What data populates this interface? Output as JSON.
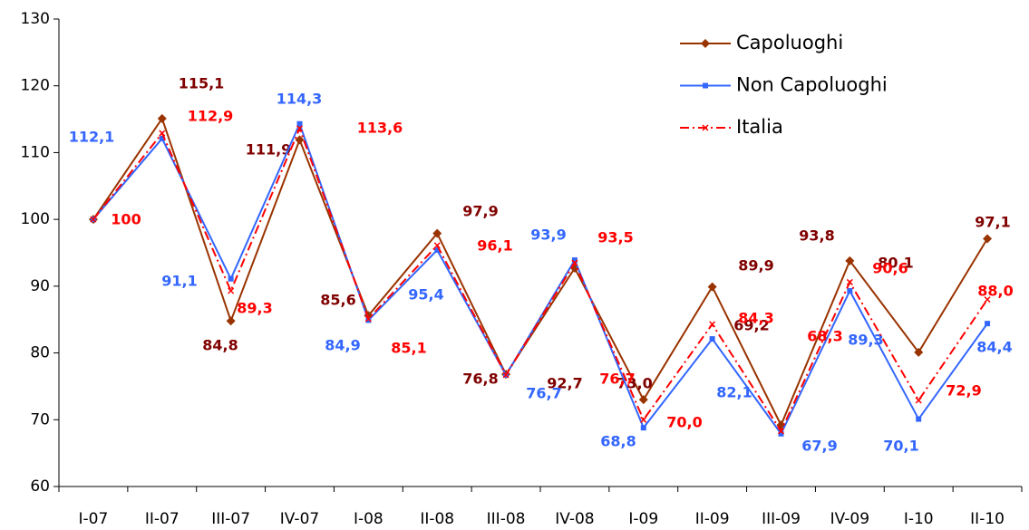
{
  "chart_data": {
    "type": "line",
    "categories": [
      "I-07",
      "II-07",
      "III-07",
      "IV-07",
      "I-08",
      "II-08",
      "III-08",
      "IV-08",
      "I-09",
      "II-09",
      "III-09",
      "IV-09",
      "I-10",
      "II-10"
    ],
    "ylim": [
      60,
      130
    ],
    "yticks": [
      60,
      70,
      80,
      90,
      100,
      110,
      120,
      130
    ],
    "grid": false,
    "legend": "upper right",
    "series": [
      {
        "name": "Capoluoghi",
        "color": "#993300",
        "label_color": "#800000",
        "marker": "diamond",
        "dash": "solid",
        "values": [
          100,
          115.1,
          84.8,
          111.9,
          85.6,
          97.9,
          76.8,
          92.7,
          73.0,
          89.9,
          69.2,
          93.8,
          80.1,
          97.1
        ],
        "value_labels": [
          null,
          "115,1",
          "84,8",
          "111,9",
          "85,6",
          "97,9",
          "76,8",
          "92,7",
          "73,0",
          "89,9",
          "69,2",
          "93,8",
          "80,1",
          "97,1"
        ]
      },
      {
        "name": "Non Capoluoghi",
        "color": "#3366ff",
        "label_color": "#3366ff",
        "marker": "square",
        "dash": "solid",
        "values": [
          100,
          112.1,
          91.1,
          114.3,
          84.9,
          95.4,
          76.7,
          93.9,
          68.8,
          82.1,
          67.9,
          89.3,
          70.1,
          84.4
        ],
        "value_labels": [
          null,
          "112,1",
          "91,1",
          "114,3",
          "84,9",
          "95,4",
          "76,7",
          "93,9",
          "68,8",
          "82,1",
          "67,9",
          "89,3",
          "70,1",
          "84,4"
        ]
      },
      {
        "name": "Italia",
        "color": "#ff0000",
        "label_color": "#ff0000",
        "marker": "x",
        "dash": "dashdot",
        "values": [
          100,
          112.9,
          89.3,
          113.6,
          85.1,
          96.1,
          76.7,
          93.5,
          70.0,
          84.3,
          68.3,
          90.6,
          72.9,
          88.0
        ],
        "value_labels": [
          "100",
          "112,9",
          "89,3",
          "113,6",
          "85,1",
          "96,1",
          "76,7",
          "93,5",
          "70,0",
          "84,3",
          "68,3",
          "90,6",
          "72,9",
          "88,0"
        ]
      }
    ]
  }
}
